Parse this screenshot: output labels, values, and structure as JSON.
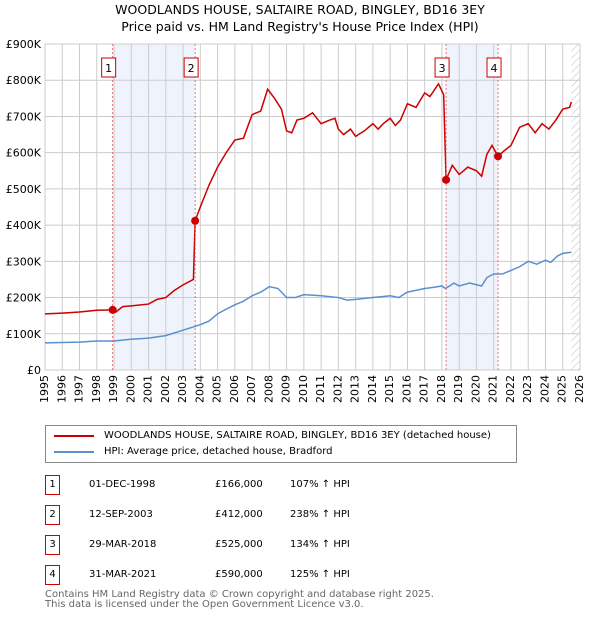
{
  "chart_data": {
    "type": "line",
    "title": "WOODLANDS HOUSE, SALTAIRE ROAD, BINGLEY, BD16 3EY",
    "subtitle": "Price paid vs. HM Land Registry's House Price Index (HPI)",
    "xlim": [
      1995,
      2026
    ],
    "ylim": [
      0,
      900000
    ],
    "yticks": [
      {
        "v": 0,
        "label": "£0"
      },
      {
        "v": 100000,
        "label": "£100K"
      },
      {
        "v": 200000,
        "label": "£200K"
      },
      {
        "v": 300000,
        "label": "£300K"
      },
      {
        "v": 400000,
        "label": "£400K"
      },
      {
        "v": 500000,
        "label": "£500K"
      },
      {
        "v": 600000,
        "label": "£600K"
      },
      {
        "v": 700000,
        "label": "£700K"
      },
      {
        "v": 800000,
        "label": "£800K"
      },
      {
        "v": 900000,
        "label": "£900K"
      }
    ],
    "xticks": [
      "1995",
      "1996",
      "1997",
      "1998",
      "1999",
      "2000",
      "2001",
      "2002",
      "2003",
      "2004",
      "2005",
      "2006",
      "2007",
      "2008",
      "2009",
      "2010",
      "2011",
      "2012",
      "2013",
      "2014",
      "2015",
      "2016",
      "2017",
      "2018",
      "2019",
      "2020",
      "2021",
      "2022",
      "2023",
      "2024",
      "2025",
      "2026"
    ],
    "grid": true,
    "forecast_hatch_from": 2025.5,
    "series": [
      {
        "name": "WOODLANDS HOUSE, SALTAIRE ROAD, BINGLEY, BD16 3EY (detached house)",
        "color": "#cc0000",
        "x": [
          1995,
          1996,
          1997,
          1998,
          1998.92,
          1999.1,
          1999.5,
          2000,
          2001,
          2001.5,
          2002,
          2002.5,
          2003,
          2003.6,
          2003.7,
          2004,
          2004.5,
          2005,
          2005.5,
          2006,
          2006.5,
          2007,
          2007.5,
          2007.9,
          2008.3,
          2008.7,
          2009,
          2009.3,
          2009.6,
          2010,
          2010.5,
          2011,
          2011.5,
          2011.8,
          2012,
          2012.3,
          2012.7,
          2013,
          2013.5,
          2014,
          2014.3,
          2014.6,
          2015,
          2015.3,
          2015.6,
          2016,
          2016.5,
          2017,
          2017.3,
          2017.8,
          2018.1,
          2018.24,
          2018.6,
          2019,
          2019.5,
          2020,
          2020.3,
          2020.6,
          2020.9,
          2021.25,
          2021.6,
          2022,
          2022.5,
          2023,
          2023.4,
          2023.8,
          2024.2,
          2024.6,
          2025,
          2025.4,
          2025.5
        ],
        "values": [
          155000,
          157000,
          160000,
          165000,
          166000,
          160000,
          175000,
          177000,
          182000,
          195000,
          200000,
          220000,
          235000,
          250000,
          412000,
          450000,
          510000,
          560000,
          600000,
          635000,
          640000,
          705000,
          715000,
          775000,
          750000,
          720000,
          660000,
          655000,
          690000,
          695000,
          710000,
          680000,
          690000,
          695000,
          665000,
          650000,
          665000,
          645000,
          660000,
          680000,
          665000,
          680000,
          695000,
          675000,
          690000,
          735000,
          725000,
          765000,
          755000,
          790000,
          760000,
          525000,
          565000,
          540000,
          560000,
          550000,
          535000,
          595000,
          620000,
          590000,
          605000,
          620000,
          670000,
          680000,
          655000,
          680000,
          665000,
          690000,
          720000,
          725000,
          740000
        ]
      },
      {
        "name": "HPI: Average price, detached house, Bradford",
        "color": "#5b8fd0",
        "x": [
          1995,
          1997,
          1998,
          1999,
          2000,
          2001,
          2002,
          2003,
          2004,
          2004.5,
          2005,
          2005.5,
          2006,
          2006.5,
          2007,
          2007.5,
          2008,
          2008.5,
          2009,
          2009.5,
          2010,
          2011,
          2012,
          2012.5,
          2013,
          2014,
          2015,
          2015.5,
          2016,
          2017,
          2017.5,
          2018,
          2018.2,
          2018.7,
          2019,
          2019.6,
          2020.3,
          2020.6,
          2021,
          2021.5,
          2022,
          2022.5,
          2023,
          2023.5,
          2024,
          2024.3,
          2024.7,
          2025,
          2025.5
        ],
        "values": [
          75000,
          77000,
          80000,
          80000,
          85000,
          88000,
          95000,
          110000,
          125000,
          135000,
          155000,
          168000,
          180000,
          190000,
          205000,
          215000,
          230000,
          225000,
          200000,
          200000,
          208000,
          205000,
          200000,
          193000,
          195000,
          200000,
          205000,
          200000,
          215000,
          225000,
          228000,
          232000,
          225000,
          240000,
          232000,
          240000,
          232000,
          255000,
          265000,
          265000,
          275000,
          285000,
          300000,
          292000,
          303000,
          297000,
          315000,
          322000,
          325000
        ]
      }
    ],
    "sales": [
      {
        "label": "1",
        "x": 1998.92,
        "date": "01-DEC-1998",
        "price": "£166,000",
        "value": 166000,
        "hpi": "107% ↑ HPI"
      },
      {
        "label": "2",
        "x": 2003.7,
        "date": "12-SEP-2003",
        "price": "£412,000",
        "value": 412000,
        "hpi": "238% ↑ HPI"
      },
      {
        "label": "3",
        "x": 2018.24,
        "date": "29-MAR-2018",
        "price": "£525,000",
        "value": 525000,
        "hpi": "134% ↑ HPI"
      },
      {
        "label": "4",
        "x": 2021.25,
        "date": "31-MAR-2021",
        "price": "£590,000",
        "value": 590000,
        "hpi": "125% ↑ HPI"
      }
    ]
  },
  "legend": {
    "property": "WOODLANDS HOUSE, SALTAIRE ROAD, BINGLEY, BD16 3EY (detached house)",
    "hpi": "HPI: Average price, detached house, Bradford"
  },
  "footer": {
    "line1": "Contains HM Land Registry data © Crown copyright and database right 2025.",
    "line2": "This data is licensed under the Open Government Licence v3.0."
  }
}
